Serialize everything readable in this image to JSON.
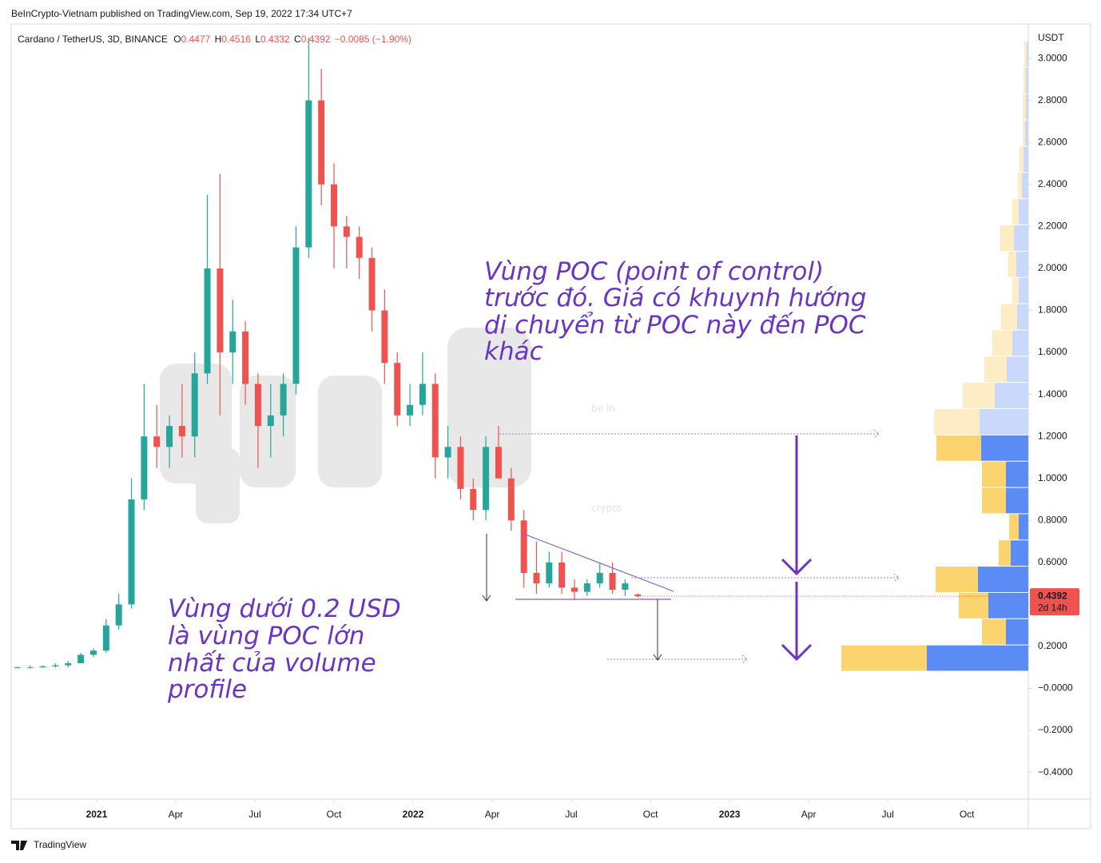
{
  "chart_data": {
    "type": "candlestick",
    "publisher": "BeInCrypto-Vietnam published on TradingView.com, Sep 19, 2022 17:34 UTC+7",
    "legend": {
      "symbol": "Cardano / TetherUS, 3D, BINANCE",
      "open_label": "O",
      "open": "0.4477",
      "high_label": "H",
      "high": "0.4516",
      "low_label": "L",
      "low": "0.4332",
      "close_label": "C",
      "close": "0.4392",
      "change": "−0.0085 (−1.90%)"
    },
    "y_unit": "USDT",
    "x": [
      2020.75,
      2020.79,
      2020.83,
      2020.87,
      2020.91,
      2020.95,
      2020.99,
      2021.03,
      2021.07,
      2021.11,
      2021.15,
      2021.19,
      2021.23,
      2021.27,
      2021.31,
      2021.35,
      2021.39,
      2021.43,
      2021.47,
      2021.51,
      2021.55,
      2021.59,
      2021.63,
      2021.67,
      2021.71,
      2021.75,
      2021.79,
      2021.83,
      2021.87,
      2021.91,
      2021.95,
      2021.99,
      2022.03,
      2022.07,
      2022.11,
      2022.15,
      2022.19,
      2022.23,
      2022.27,
      2022.31,
      2022.35,
      2022.39,
      2022.43,
      2022.47,
      2022.51,
      2022.55,
      2022.59,
      2022.63,
      2022.67,
      2022.71
    ],
    "open": [
      0.1,
      0.1,
      0.1,
      0.105,
      0.11,
      0.12,
      0.16,
      0.18,
      0.3,
      0.4,
      0.9,
      1.2,
      1.15,
      1.25,
      1.2,
      1.5,
      2.0,
      1.6,
      1.7,
      1.45,
      1.25,
      1.3,
      1.45,
      2.1,
      2.8,
      2.4,
      2.2,
      2.15,
      2.05,
      1.8,
      1.55,
      1.3,
      1.35,
      1.45,
      1.1,
      1.15,
      0.95,
      0.85,
      1.15,
      1.0,
      0.8,
      0.55,
      0.5,
      0.6,
      0.48,
      0.46,
      0.5,
      0.55,
      0.47,
      0.4477
    ],
    "high": [
      0.105,
      0.11,
      0.11,
      0.12,
      0.13,
      0.17,
      0.19,
      0.33,
      0.45,
      1.0,
      1.45,
      1.35,
      1.3,
      1.45,
      1.6,
      2.35,
      2.45,
      1.85,
      1.75,
      1.5,
      1.45,
      1.5,
      2.2,
      3.1,
      2.95,
      2.5,
      2.25,
      2.2,
      2.1,
      1.9,
      1.6,
      1.45,
      1.6,
      1.5,
      1.25,
      1.2,
      1.0,
      1.2,
      1.25,
      1.05,
      0.85,
      0.7,
      0.65,
      0.65,
      0.52,
      0.52,
      0.6,
      0.6,
      0.52,
      0.4516
    ],
    "low": [
      0.095,
      0.095,
      0.1,
      0.1,
      0.1,
      0.12,
      0.15,
      0.17,
      0.28,
      0.38,
      0.85,
      1.05,
      1.05,
      1.1,
      1.1,
      1.45,
      1.3,
      1.45,
      1.35,
      1.05,
      1.1,
      1.2,
      1.4,
      2.05,
      2.3,
      2.0,
      2.0,
      1.95,
      1.7,
      1.45,
      1.25,
      1.25,
      1.3,
      1.0,
      1.0,
      0.9,
      0.8,
      0.8,
      1.0,
      0.75,
      0.48,
      0.45,
      0.48,
      0.45,
      0.42,
      0.44,
      0.48,
      0.45,
      0.44,
      0.4332
    ],
    "close": [
      0.1,
      0.1,
      0.105,
      0.11,
      0.12,
      0.16,
      0.18,
      0.3,
      0.4,
      0.9,
      1.2,
      1.15,
      1.25,
      1.2,
      1.5,
      2.0,
      1.6,
      1.7,
      1.45,
      1.25,
      1.3,
      1.45,
      2.1,
      2.8,
      2.4,
      2.2,
      2.15,
      2.05,
      1.8,
      1.55,
      1.3,
      1.35,
      1.45,
      1.1,
      1.15,
      0.95,
      0.85,
      1.15,
      1.0,
      0.8,
      0.55,
      0.5,
      0.6,
      0.48,
      0.46,
      0.5,
      0.55,
      0.47,
      0.5,
      0.4392
    ],
    "up_color": "#26a69a",
    "down_color": "#ef5350",
    "xlim": [
      2020.73,
      2023.944
    ],
    "xticks": [
      2021,
      {
        "value": 2021.25,
        "label": "Apr"
      },
      {
        "value": 2021.5,
        "label": "Jul"
      },
      {
        "value": 2021.75,
        "label": "Oct"
      },
      2022,
      {
        "value": 2022.25,
        "label": "Apr"
      },
      {
        "value": 2022.5,
        "label": "Jul"
      },
      {
        "value": 2022.75,
        "label": "Oct"
      },
      2023,
      {
        "value": 2023.25,
        "label": "Apr"
      },
      {
        "value": 2023.5,
        "label": "Jul"
      },
      {
        "value": 2023.75,
        "label": "Oct"
      }
    ],
    "ylim": [
      -0.527,
      3.164
    ],
    "yticks": [
      {
        "value": -0.4,
        "label": "−0.4000"
      },
      {
        "value": -0.2,
        "label": "−0.2000"
      },
      {
        "value": 0,
        "label": "−0.0000"
      },
      {
        "value": 0.2,
        "label": "0.2000"
      },
      {
        "value": 0.4,
        "label": "0.4000"
      },
      {
        "value": 0.6,
        "label": "0.6000"
      },
      {
        "value": 0.8,
        "label": "0.8000"
      },
      {
        "value": 1.0,
        "label": "1.0000"
      },
      {
        "value": 1.2,
        "label": "1.2000"
      },
      {
        "value": 1.4,
        "label": "1.4000"
      },
      {
        "value": 1.6,
        "label": "1.6000"
      },
      {
        "value": 1.8,
        "label": "1.8000"
      },
      {
        "value": 2.0,
        "label": "2.0000"
      },
      {
        "value": 2.2,
        "label": "2.2000"
      },
      {
        "value": 2.4,
        "label": "2.4000"
      },
      {
        "value": 2.6,
        "label": "2.6000"
      },
      {
        "value": 2.8,
        "label": "2.8000"
      },
      {
        "value": 3.0,
        "label": "3.0000"
      }
    ],
    "last_price": 0.4392,
    "countdown": "2d 14h",
    "volume_profiles": [
      {
        "bins": [
          0.08,
          0.205,
          0.33,
          0.455,
          0.58,
          0.705,
          0.83,
          0.955,
          1.08,
          1.205
        ],
        "up": [
          127,
          28,
          50,
          63,
          22,
          12,
          28,
          28,
          59
        ],
        "down": [
          107,
          30,
          37,
          53,
          15,
          12,
          30,
          30,
          56
        ],
        "up_color": "#5b8cf5",
        "down_color": "#fbd470"
      },
      {
        "bins": [
          1.205,
          1.33,
          1.455,
          1.58,
          1.705,
          1.83,
          1.955,
          2.08,
          2.205,
          2.33,
          2.455,
          2.58,
          2.705,
          2.83,
          2.955,
          3.08
        ],
        "up": [
          61,
          42,
          27,
          20,
          14,
          12,
          15,
          18,
          12,
          8,
          6,
          4,
          3,
          3,
          2
        ],
        "down": [
          57,
          40,
          28,
          25,
          20,
          8,
          10,
          17,
          8,
          5,
          5,
          3,
          4,
          3,
          3
        ],
        "up_color": "#c9d8fb",
        "down_color": "#fdecc4"
      }
    ],
    "watermark": [
      "be in",
      "crypto"
    ],
    "annotations": [
      {
        "lines": [
          "Vùng POC  (point of control)",
          "trước đó. Giá có khuynh hướng",
          "di chuyển từ POC này đến POC",
          "khác"
        ]
      },
      {
        "lines": [
          "Vùng dưới 0.2 USD",
          "là vùng POC lớn",
          "nhất của volume",
          "profile"
        ]
      }
    ],
    "footer": "TradingView"
  }
}
